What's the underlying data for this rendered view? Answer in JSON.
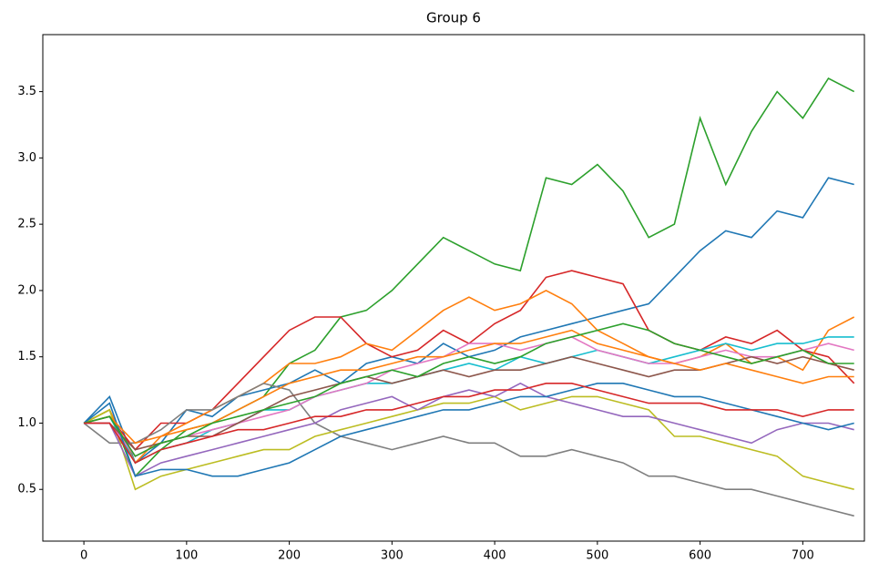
{
  "chart_data": {
    "type": "line",
    "title": "Group 6",
    "x": [
      0,
      25,
      50,
      75,
      100,
      125,
      150,
      175,
      200,
      225,
      250,
      275,
      300,
      325,
      350,
      375,
      400,
      425,
      450,
      475,
      500,
      525,
      550,
      575,
      600,
      625,
      650,
      675,
      700,
      725,
      750
    ],
    "xlim": [
      -40,
      760
    ],
    "ylim": [
      0.11,
      3.93
    ],
    "xticks": [
      0,
      100,
      200,
      300,
      400,
      500,
      600,
      700
    ],
    "yticks": [
      0.5,
      {
        "value": 1.0,
        "label": "1.0"
      },
      1.5,
      {
        "value": 2.0,
        "label": "2.0"
      },
      2.5,
      {
        "value": 3.0,
        "label": "3.0"
      },
      3.5
    ],
    "grid": false,
    "series": [
      {
        "color": "#2ca02c",
        "values": [
          1.0,
          1.1,
          0.6,
          0.8,
          0.95,
          1.0,
          1.1,
          1.2,
          1.45,
          1.55,
          1.8,
          1.85,
          2.0,
          2.2,
          2.4,
          2.3,
          2.2,
          2.15,
          2.85,
          2.8,
          2.95,
          2.75,
          2.4,
          2.5,
          3.3,
          2.8,
          3.2,
          3.5,
          3.3,
          3.6,
          3.5
        ]
      },
      {
        "color": "#1f77b4",
        "values": [
          1.0,
          1.2,
          0.7,
          0.85,
          1.1,
          1.05,
          1.2,
          1.25,
          1.3,
          1.4,
          1.3,
          1.45,
          1.5,
          1.45,
          1.6,
          1.5,
          1.55,
          1.65,
          1.7,
          1.75,
          1.8,
          1.85,
          1.9,
          2.1,
          2.3,
          2.45,
          2.4,
          2.6,
          2.55,
          2.85,
          2.8
        ]
      },
      {
        "color": "#d62728",
        "values": [
          1.0,
          1.05,
          0.8,
          1.0,
          1.0,
          1.1,
          1.3,
          1.5,
          1.7,
          1.8,
          1.8,
          1.6,
          1.5,
          1.55,
          1.7,
          1.6,
          1.75,
          1.85,
          2.1,
          2.15,
          2.1,
          2.05,
          1.7,
          1.6,
          1.55,
          1.65,
          1.6,
          1.7,
          1.55,
          1.5,
          1.3
        ]
      },
      {
        "color": "#ff7f0e",
        "values": [
          1.0,
          1.1,
          0.7,
          0.9,
          1.0,
          1.1,
          1.2,
          1.3,
          1.45,
          1.45,
          1.5,
          1.6,
          1.55,
          1.7,
          1.85,
          1.95,
          1.85,
          1.9,
          2.0,
          1.9,
          1.7,
          1.6,
          1.5,
          1.45,
          1.5,
          1.6,
          1.45,
          1.5,
          1.4,
          1.7,
          1.8
        ]
      },
      {
        "color": "#7f7f7f",
        "values": [
          1.0,
          0.85,
          0.85,
          0.95,
          1.1,
          1.1,
          1.2,
          1.3,
          1.25,
          1.0,
          0.9,
          0.85,
          0.8,
          0.85,
          0.9,
          0.85,
          0.85,
          0.75,
          0.75,
          0.8,
          0.75,
          0.7,
          0.6,
          0.6,
          0.55,
          0.5,
          0.5,
          0.45,
          0.4,
          0.35,
          0.3
        ]
      },
      {
        "color": "#bcbd22",
        "values": [
          1.0,
          1.1,
          0.5,
          0.6,
          0.65,
          0.7,
          0.75,
          0.8,
          0.8,
          0.9,
          0.95,
          1.0,
          1.05,
          1.1,
          1.15,
          1.15,
          1.2,
          1.1,
          1.15,
          1.2,
          1.2,
          1.15,
          1.1,
          0.9,
          0.9,
          0.85,
          0.8,
          0.75,
          0.6,
          0.55,
          0.5
        ]
      },
      {
        "color": "#9467bd",
        "values": [
          1.0,
          1.0,
          0.6,
          0.7,
          0.75,
          0.8,
          0.85,
          0.9,
          0.95,
          1.0,
          1.1,
          1.15,
          1.2,
          1.1,
          1.2,
          1.25,
          1.2,
          1.3,
          1.2,
          1.15,
          1.1,
          1.05,
          1.05,
          1.0,
          0.95,
          0.9,
          0.85,
          0.95,
          1.0,
          1.0,
          0.95
        ]
      },
      {
        "color": "#17becf",
        "values": [
          1.0,
          1.05,
          0.7,
          0.8,
          0.85,
          0.95,
          1.0,
          1.1,
          1.1,
          1.2,
          1.25,
          1.3,
          1.3,
          1.35,
          1.4,
          1.45,
          1.4,
          1.5,
          1.45,
          1.5,
          1.55,
          1.5,
          1.45,
          1.5,
          1.55,
          1.6,
          1.55,
          1.6,
          1.6,
          1.65,
          1.65
        ]
      },
      {
        "color": "#e377c2",
        "values": [
          1.0,
          1.0,
          0.75,
          0.85,
          0.9,
          0.95,
          1.0,
          1.05,
          1.1,
          1.2,
          1.25,
          1.3,
          1.4,
          1.45,
          1.5,
          1.6,
          1.6,
          1.55,
          1.6,
          1.65,
          1.55,
          1.5,
          1.45,
          1.45,
          1.5,
          1.55,
          1.5,
          1.5,
          1.55,
          1.6,
          1.55
        ]
      },
      {
        "color": "#8c564b",
        "values": [
          1.0,
          1.0,
          0.8,
          0.85,
          0.9,
          0.9,
          1.0,
          1.1,
          1.2,
          1.25,
          1.3,
          1.35,
          1.3,
          1.35,
          1.4,
          1.35,
          1.4,
          1.4,
          1.45,
          1.5,
          1.45,
          1.4,
          1.35,
          1.4,
          1.4,
          1.45,
          1.5,
          1.45,
          1.5,
          1.45,
          1.4
        ]
      },
      {
        "color": "#1f77b4",
        "values": [
          1.0,
          1.15,
          0.6,
          0.65,
          0.65,
          0.6,
          0.6,
          0.65,
          0.7,
          0.8,
          0.9,
          0.95,
          1.0,
          1.05,
          1.1,
          1.1,
          1.15,
          1.2,
          1.2,
          1.25,
          1.3,
          1.3,
          1.25,
          1.2,
          1.2,
          1.15,
          1.1,
          1.05,
          1.0,
          0.95,
          1.0
        ]
      },
      {
        "color": "#ff7f0e",
        "values": [
          1.0,
          1.05,
          0.85,
          0.9,
          0.95,
          1.0,
          1.1,
          1.2,
          1.3,
          1.35,
          1.4,
          1.4,
          1.45,
          1.5,
          1.5,
          1.55,
          1.6,
          1.6,
          1.65,
          1.7,
          1.6,
          1.55,
          1.5,
          1.45,
          1.4,
          1.45,
          1.4,
          1.35,
          1.3,
          1.35,
          1.35
        ]
      },
      {
        "color": "#2ca02c",
        "values": [
          1.0,
          1.05,
          0.75,
          0.85,
          0.9,
          1.0,
          1.05,
          1.1,
          1.15,
          1.2,
          1.3,
          1.35,
          1.4,
          1.35,
          1.45,
          1.5,
          1.45,
          1.5,
          1.6,
          1.65,
          1.7,
          1.75,
          1.7,
          1.6,
          1.55,
          1.5,
          1.45,
          1.5,
          1.55,
          1.45,
          1.45
        ]
      },
      {
        "color": "#d62728",
        "values": [
          1.0,
          1.0,
          0.7,
          0.8,
          0.85,
          0.9,
          0.95,
          0.95,
          1.0,
          1.05,
          1.05,
          1.1,
          1.1,
          1.15,
          1.2,
          1.2,
          1.25,
          1.25,
          1.3,
          1.3,
          1.25,
          1.2,
          1.15,
          1.15,
          1.15,
          1.1,
          1.1,
          1.1,
          1.05,
          1.1,
          1.1
        ]
      }
    ]
  }
}
